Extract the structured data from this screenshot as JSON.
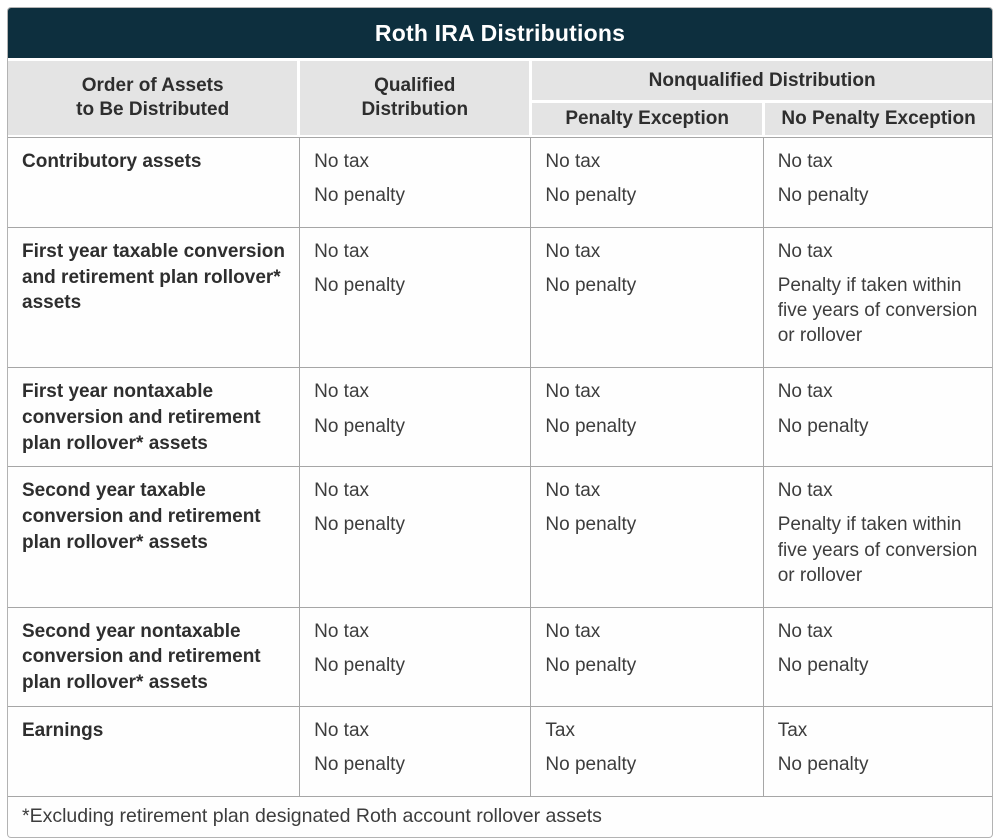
{
  "title": "Roth IRA Distributions",
  "colors": {
    "title_bg": "#0d2f3e",
    "header_bg": "#e4e4e4",
    "grid_line": "#a6a6a6",
    "text": "#3d3d3d",
    "text_bold": "#2e2e2e",
    "title_text": "#ffffff"
  },
  "header": {
    "assets_lines": [
      "Order of Assets",
      "to Be Distributed"
    ],
    "qualified_lines": [
      "Qualified",
      "Distribution"
    ],
    "nonqualified": "Nonqualified Distribution",
    "penalty_exception": "Penalty Exception",
    "no_penalty_exception": "No Penalty Exception"
  },
  "rows": [
    {
      "label": "Contributory assets",
      "qualified": [
        "No tax",
        "No penalty"
      ],
      "penalty_exception": [
        "No tax",
        "No penalty"
      ],
      "no_penalty_exception": [
        "No tax",
        "No penalty"
      ]
    },
    {
      "label": "First year taxable conversion and retirement plan rollover* assets",
      "qualified": [
        "No tax",
        "No penalty"
      ],
      "penalty_exception": [
        "No tax",
        "No penalty"
      ],
      "no_penalty_exception": [
        "No tax",
        "Penalty if taken within five years of conversion or rollover"
      ]
    },
    {
      "label": "First year nontaxable conversion and retirement plan rollover* assets",
      "qualified": [
        "No tax",
        "No penalty"
      ],
      "penalty_exception": [
        "No tax",
        "No penalty"
      ],
      "no_penalty_exception": [
        "No tax",
        "No penalty"
      ]
    },
    {
      "label": "Second year taxable conversion and retirement plan rollover* assets",
      "qualified": [
        "No tax",
        "No penalty"
      ],
      "penalty_exception": [
        "No tax",
        "No penalty"
      ],
      "no_penalty_exception": [
        "No tax",
        "Penalty if taken within five years of conversion or rollover"
      ]
    },
    {
      "label": "Second year nontaxable conversion and retirement plan rollover* assets",
      "qualified": [
        "No tax",
        "No penalty"
      ],
      "penalty_exception": [
        "No tax",
        "No penalty"
      ],
      "no_penalty_exception": [
        "No tax",
        "No penalty"
      ]
    },
    {
      "label": "Earnings",
      "qualified": [
        "No tax",
        "No penalty"
      ],
      "penalty_exception": [
        "Tax",
        "No penalty"
      ],
      "no_penalty_exception": [
        "Tax",
        "No penalty"
      ]
    }
  ],
  "footnote": "*Excluding retirement plan designated Roth account rollover assets"
}
